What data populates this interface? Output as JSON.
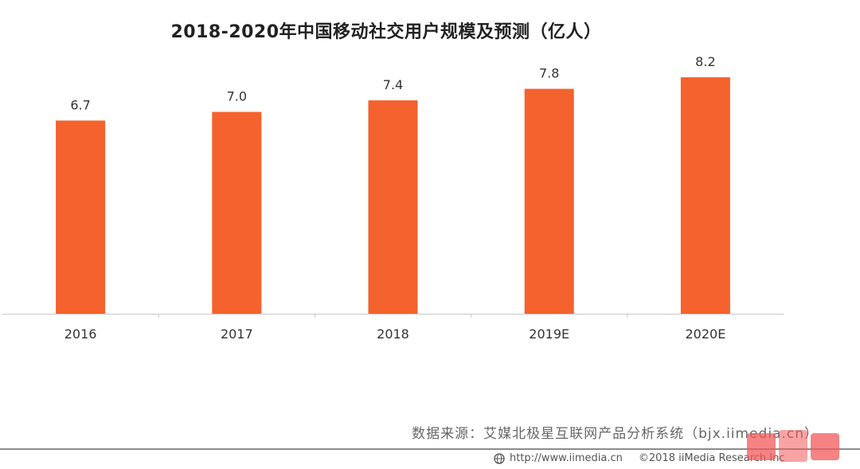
{
  "chart_data": {
    "type": "bar",
    "title": "2018-2020年中国移动社交用户规模及预测（亿人）",
    "categories": [
      "2016",
      "2017",
      "2018",
      "2019E",
      "2020E"
    ],
    "values": [
      6.7,
      7.0,
      7.4,
      7.8,
      8.2
    ],
    "data_labels": [
      "6.7",
      "7.0",
      "7.4",
      "7.8",
      "8.2"
    ],
    "xlabel": "",
    "ylabel": "",
    "ylim": [
      0,
      9.5
    ],
    "grid": false,
    "legend": "none",
    "bar_color": "#f4622d"
  },
  "source": "数据来源：艾媒北极星互联网产品分析系统（bjx.iimedia.cn）",
  "footer": {
    "url": "http://www.iimedia.cn",
    "copyright": "©2018  iiMedia Research Inc"
  },
  "icons": {
    "globe": "globe-icon",
    "watermark": "watermark-logo"
  },
  "colors": {
    "bar": "#f4622d",
    "axis": "#c8c8c8",
    "text": "#333333"
  }
}
